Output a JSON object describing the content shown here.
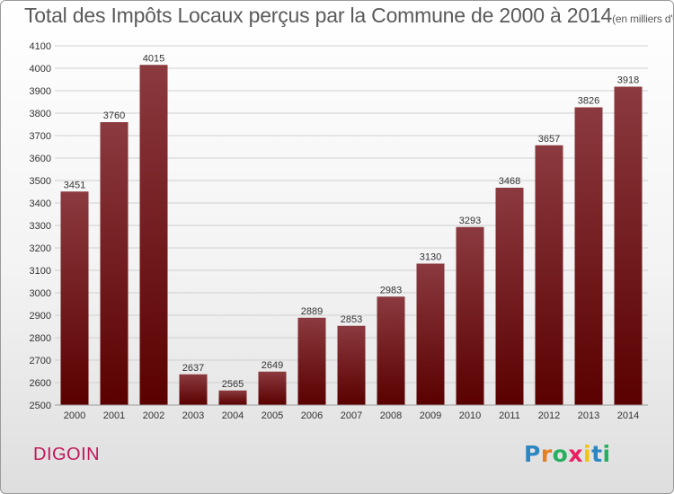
{
  "header": {
    "title": "Total des Impôts Locaux perçus par la Commune de 2000 à 2014",
    "unit": "(en milliers d'€)"
  },
  "commune": {
    "name": "DIGOIN"
  },
  "logo": {
    "text": "Proxiti",
    "letters": [
      "P",
      "r",
      "o",
      "x",
      "i",
      "t",
      "i"
    ],
    "colors": [
      "#2e86c1",
      "#e67e22",
      "#27ae60",
      "#e91e63",
      "#f1c40f",
      "#2e86c1",
      "#27ae60"
    ]
  },
  "colors": {
    "bar_top": "#8b3a3f",
    "bar_bottom": "#5a0000",
    "grid": "#cfcfcf",
    "axis_text": "#333333"
  },
  "chart_data": {
    "type": "bar",
    "title": "Total des Impôts Locaux perçus par la Commune de 2000 à 2014",
    "xlabel": "",
    "ylabel": "en milliers d'€",
    "categories": [
      "2000",
      "2001",
      "2002",
      "2003",
      "2004",
      "2005",
      "2006",
      "2007",
      "2008",
      "2009",
      "2010",
      "2011",
      "2012",
      "2013",
      "2014"
    ],
    "values": [
      3451,
      3760,
      4015,
      2637,
      2565,
      2649,
      2889,
      2853,
      2983,
      3130,
      3293,
      3468,
      3657,
      3826,
      3918
    ],
    "ylim": [
      2500,
      4100
    ],
    "yticks": [
      2500,
      2600,
      2700,
      2800,
      2900,
      3000,
      3100,
      3200,
      3300,
      3400,
      3500,
      3600,
      3700,
      3800,
      3900,
      4000,
      4100
    ],
    "grid": true
  }
}
